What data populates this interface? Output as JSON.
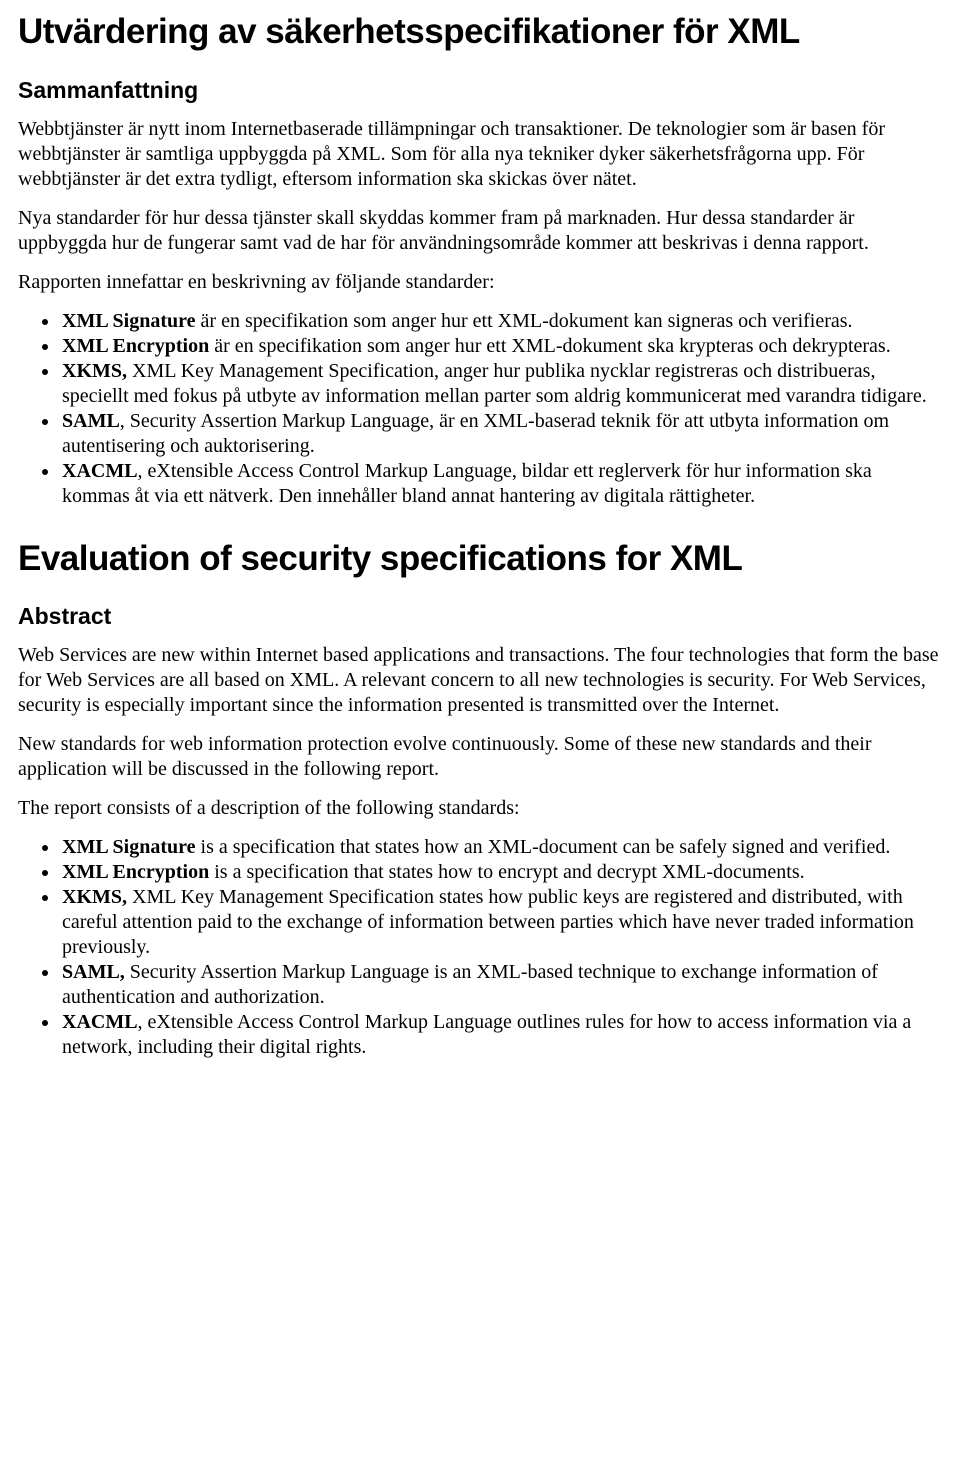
{
  "sv": {
    "title": "Utvärdering av säkerhetsspecifikationer för XML",
    "subtitle": "Sammanfattning",
    "p1": "Webbtjänster är nytt inom Internetbaserade tillämpningar och transaktioner. De teknologier som är basen för webbtjänster är samtliga uppbyggda på XML. Som för alla nya tekniker dyker säkerhetsfrågorna upp. För webbtjänster är det extra tydligt, eftersom information ska skickas över nätet.",
    "p2": "Nya standarder för hur dessa tjänster skall skyddas kommer fram på marknaden. Hur dessa standarder är uppbyggda hur de fungerar samt vad de har för användningsområde kommer att beskrivas i denna rapport.",
    "p3": "Rapporten innefattar en beskrivning av följande standarder:",
    "items": [
      {
        "bold": "XML Signature",
        "rest": " är en specifikation som anger hur ett XML-dokument kan signeras och verifieras."
      },
      {
        "bold": "XML Encryption",
        "rest": " är en specifikation som anger hur ett XML-dokument ska krypteras och dekrypteras."
      },
      {
        "bold": "XKMS,",
        "rest": " XML Key Management Specification, anger hur publika nycklar registreras och distribueras, speciellt med fokus på utbyte av information mellan parter som aldrig kommunicerat med varandra tidigare."
      },
      {
        "bold": "SAML",
        "rest": ", Security Assertion Markup Language, är en XML-baserad teknik för att utbyta information om autentisering och auktorisering."
      },
      {
        "bold": "XACML",
        "rest": ", eXtensible Access Control Markup Language, bildar ett reglerverk för hur information ska kommas åt via ett nätverk. Den innehåller bland annat hantering av digitala rättigheter."
      }
    ]
  },
  "en": {
    "title": "Evaluation of security specifications for XML",
    "subtitle": "Abstract",
    "p1": "Web Services are new within Internet based applications and transactions. The four technologies that form the base for Web Services are all based on XML. A relevant concern to all new technologies is security. For Web Services, security is especially important since the information presented is transmitted over the Internet.",
    "p2": "New standards for web information protection evolve continuously. Some of these new standards and their application will be discussed in the following report.",
    "p3": "The report consists of a description of the following standards:",
    "items": [
      {
        "bold": "XML Signature",
        "rest": " is a specification that states how an XML-document can be safely signed and verified."
      },
      {
        "bold": "XML Encryption",
        "rest": " is a specification that states how to encrypt and decrypt XML-documents."
      },
      {
        "bold": "XKMS,",
        "rest": " XML Key Management Specification states how public keys are registered and distributed, with careful attention paid to the exchange of information between parties which have never traded information previously."
      },
      {
        "bold": "SAML,",
        "rest": " Security Assertion Markup Language is an XML-based technique to exchange information of authentication and authorization."
      },
      {
        "bold": "XACML",
        "rest": ", eXtensible Access Control Markup Language outlines rules for how to access information via a network, including their digital rights."
      }
    ]
  }
}
